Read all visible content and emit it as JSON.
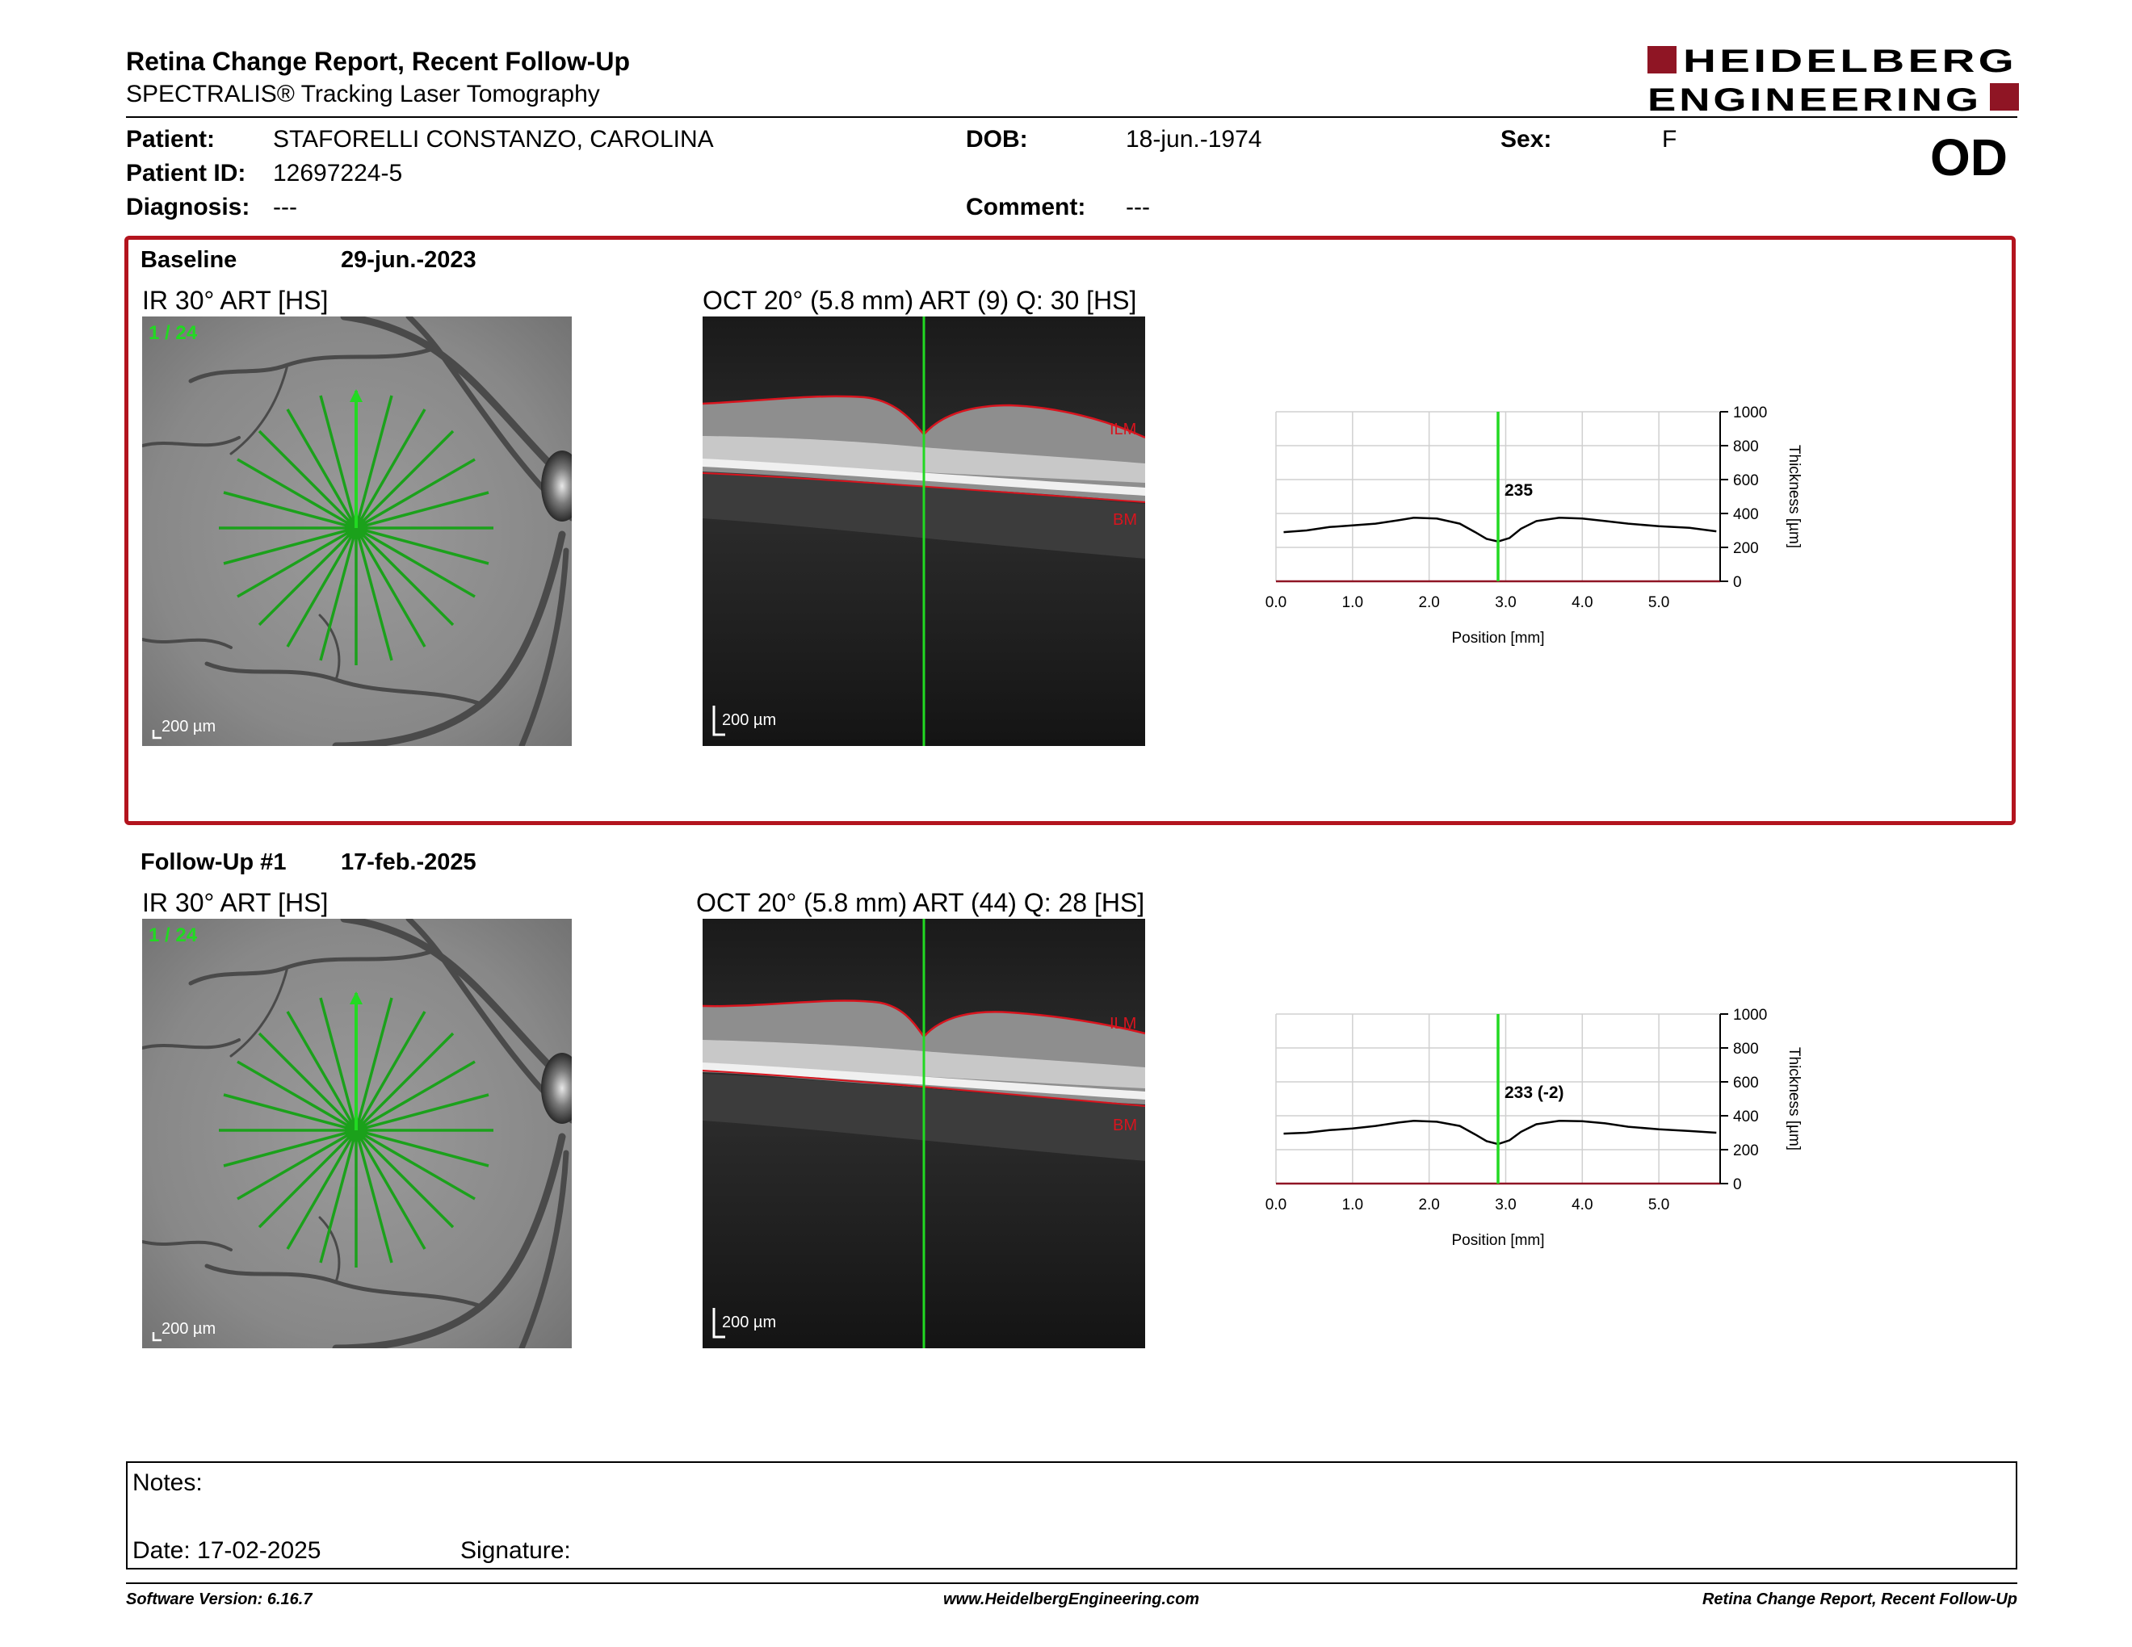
{
  "header": {
    "title": "Retina Change Report, Recent Follow-Up",
    "subtitle": "SPECTRALIS® Tracking Laser Tomography",
    "logo_line1": "HEIDELBERG",
    "logo_line2": "ENGINEERING",
    "eye": "OD"
  },
  "patient": {
    "name_label": "Patient:",
    "name": "STAFORELLI CONSTANZO, CAROLINA",
    "id_label": "Patient ID:",
    "id": "12697224-5",
    "diagnosis_label": "Diagnosis:",
    "diagnosis": "---",
    "dob_label": "DOB:",
    "dob": "18-jun.-1974",
    "comment_label": "Comment:",
    "comment": "---",
    "sex_label": "Sex:",
    "sex": "F"
  },
  "baseline": {
    "label": "Baseline",
    "date": "29-jun.-2023",
    "ir_title": "IR 30° ART [HS]",
    "ir_counter": "1 / 24",
    "ir_scale": "200 µm",
    "oct_title": "OCT 20° (5.8 mm) ART (9) Q: 30 [HS]",
    "oct_scale": "200 µm",
    "ilm_label": "ILM",
    "bm_label": "BM",
    "thickness_label": "235"
  },
  "followup": {
    "label": "Follow-Up #1",
    "date": "17-feb.-2025",
    "ir_title": "IR 30° ART [HS]",
    "ir_counter": "1 / 24",
    "ir_scale": "200 µm",
    "oct_title": "OCT 20° (5.8 mm) ART (44) Q: 28 [HS]",
    "oct_scale": "200 µm",
    "ilm_label": "ILM",
    "bm_label": "BM",
    "thickness_label": "233 (-2)"
  },
  "chart_data": [
    {
      "type": "line",
      "xlabel": "Position [mm]",
      "ylabel": "Thickness [µm]",
      "xlim": [
        0,
        5.8
      ],
      "ylim": [
        0,
        1000
      ],
      "x_ticks": [
        "0.0",
        "1.0",
        "2.0",
        "3.0",
        "4.0",
        "5.0"
      ],
      "y_ticks": [
        "0",
        "200",
        "400",
        "600",
        "800",
        "1000"
      ],
      "marker_x": 2.9,
      "marker_label": "235",
      "grid": true,
      "series": [
        {
          "x": [
            0.1,
            0.4,
            0.7,
            1.0,
            1.3,
            1.6,
            1.8,
            2.1,
            2.4,
            2.6,
            2.75,
            2.9,
            3.05,
            3.2,
            3.4,
            3.7,
            4.0,
            4.3,
            4.6,
            5.0,
            5.4,
            5.75
          ],
          "values": [
            290,
            300,
            320,
            330,
            340,
            360,
            375,
            370,
            340,
            290,
            250,
            235,
            255,
            310,
            355,
            375,
            370,
            355,
            340,
            325,
            315,
            295
          ]
        }
      ]
    },
    {
      "type": "line",
      "xlabel": "Position [mm]",
      "ylabel": "Thickness [µm]",
      "xlim": [
        0,
        5.8
      ],
      "ylim": [
        0,
        1000
      ],
      "x_ticks": [
        "0.0",
        "1.0",
        "2.0",
        "3.0",
        "4.0",
        "5.0"
      ],
      "y_ticks": [
        "0",
        "200",
        "400",
        "600",
        "800",
        "1000"
      ],
      "marker_x": 2.9,
      "marker_label": "233 (-2)",
      "grid": true,
      "series": [
        {
          "x": [
            0.1,
            0.4,
            0.7,
            1.0,
            1.3,
            1.6,
            1.8,
            2.1,
            2.4,
            2.6,
            2.75,
            2.9,
            3.05,
            3.2,
            3.4,
            3.7,
            4.0,
            4.3,
            4.6,
            5.0,
            5.4,
            5.75
          ],
          "values": [
            295,
            300,
            315,
            325,
            340,
            360,
            370,
            365,
            340,
            290,
            250,
            233,
            255,
            305,
            350,
            370,
            368,
            355,
            335,
            320,
            310,
            300
          ]
        }
      ]
    }
  ],
  "notes": {
    "notes_label": "Notes:",
    "date_label": "Date: 17-02-2025",
    "signature_label": "Signature:"
  },
  "footer": {
    "software": "Software Version: 6.16.7",
    "website": "www.HeidelbergEngineering.com",
    "report": "Retina Change Report, Recent Follow-Up"
  },
  "colors": {
    "accent": "#8f1524",
    "frame": "#b3141e",
    "scan_green": "#22b922",
    "layer_red": "#d8141e"
  }
}
